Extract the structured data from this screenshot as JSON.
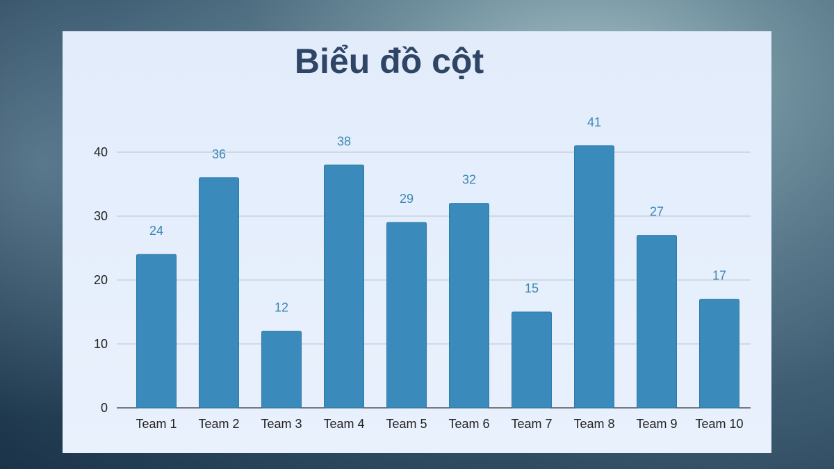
{
  "chart_data": {
    "type": "bar",
    "title": "Biểu đồ cột",
    "categories": [
      "Team 1",
      "Team 2",
      "Team 3",
      "Team 4",
      "Team 5",
      "Team 6",
      "Team 7",
      "Team 8",
      "Team 9",
      "Team 10"
    ],
    "values": [
      24,
      36,
      12,
      38,
      29,
      32,
      15,
      41,
      27,
      17
    ],
    "xlabel": "",
    "ylabel": "",
    "ylim": [
      0,
      40
    ],
    "yticks": [
      "0",
      "10",
      "20",
      "30",
      "40"
    ],
    "grid": true,
    "legend": "none",
    "bar_color": "#3a8bbb",
    "label_color": "#3c86b4"
  }
}
